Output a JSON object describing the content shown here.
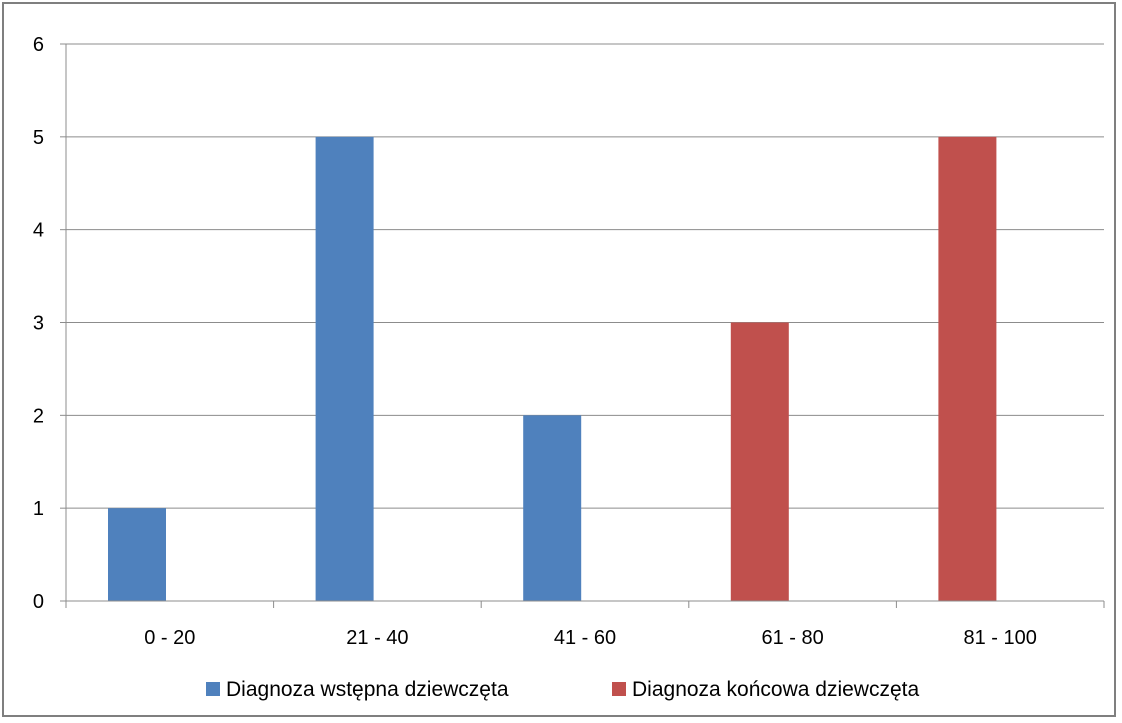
{
  "chart_data": {
    "type": "bar",
    "categories": [
      "0 - 20",
      "21 - 40",
      "41 - 60",
      "61 - 80",
      "81 - 100"
    ],
    "series": [
      {
        "name": "Diagnoza wstępna dziewczęta",
        "values": [
          1,
          5,
          2,
          0,
          0
        ],
        "color": "#4F81BD"
      },
      {
        "name": "Diagnoza końcowa dziewczęta",
        "values": [
          0,
          0,
          0,
          3,
          5
        ],
        "color": "#C0504D"
      }
    ],
    "ylim": [
      0,
      6
    ],
    "yticks": [
      0,
      1,
      2,
      3,
      4,
      5,
      6
    ],
    "grid": true,
    "legend_position": "bottom",
    "title": "",
    "xlabel": "",
    "ylabel": ""
  }
}
